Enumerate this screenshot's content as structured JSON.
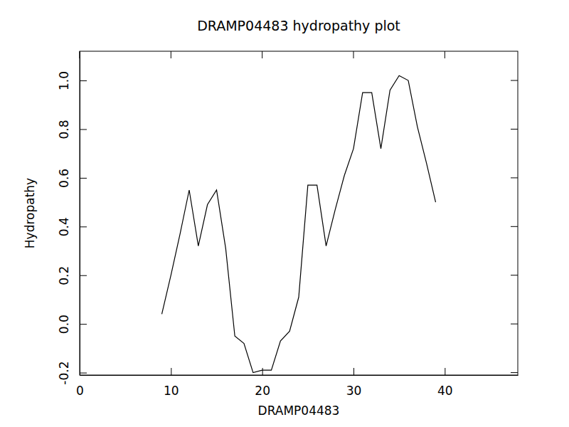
{
  "chart_data": {
    "type": "line",
    "title": "DRAMP04483 hydropathy plot",
    "x_label": "DRAMP04483",
    "y_label": "Hydropathy",
    "x": [
      9,
      10,
      11,
      12,
      13,
      14,
      15,
      16,
      17,
      18,
      19,
      20,
      21,
      22,
      23,
      24,
      25,
      26,
      27,
      28,
      29,
      30,
      31,
      32,
      33,
      34,
      35,
      36,
      37,
      38,
      39
    ],
    "values": [
      0.04,
      0.2,
      0.37,
      0.55,
      0.32,
      0.49,
      0.55,
      0.31,
      -0.05,
      -0.08,
      -0.2,
      -0.19,
      -0.19,
      -0.07,
      -0.03,
      0.11,
      0.57,
      0.57,
      0.32,
      0.47,
      0.61,
      0.72,
      0.95,
      0.95,
      0.72,
      0.96,
      1.02,
      1.0,
      0.81,
      0.66,
      0.5
    ],
    "color": "#000000",
    "xlim": [
      0,
      48
    ],
    "xticks": [
      0,
      10,
      20,
      30,
      40
    ],
    "ylim": [
      -0.21,
      1.12
    ],
    "yticks": [
      -0.2,
      {
        "value": 0,
        "label": "0.0"
      },
      0.2,
      0.4,
      0.6,
      0.8,
      {
        "value": 1,
        "label": "1.0"
      }
    ]
  }
}
